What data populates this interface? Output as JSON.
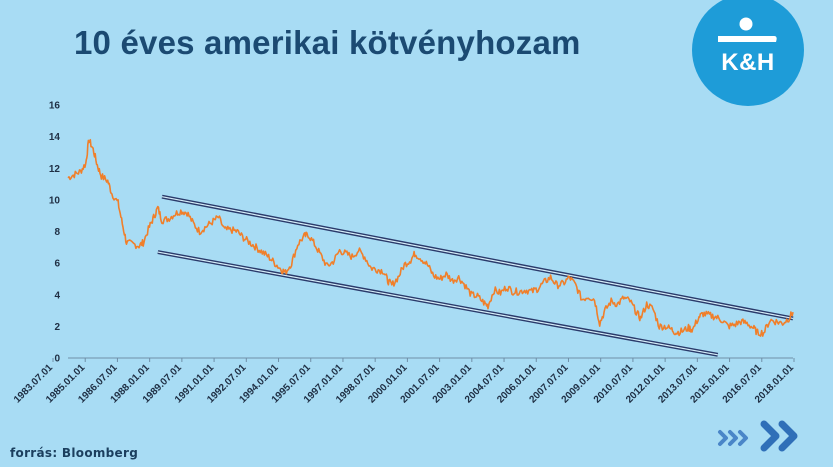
{
  "header": {
    "title": "10 éves amerikai kötvényhozam",
    "logo_text": "K&H",
    "logo_icon": "kh-bank-logo-icon"
  },
  "footer": {
    "source": "forrás: Bloomberg",
    "nav_icon": "double-chevron-right-icon"
  },
  "colors": {
    "background": "#a8dcf4",
    "title": "#1b4a72",
    "series": "#f07f2a",
    "trend_lines": "#2a3a6a",
    "logo": "#1e9cd8"
  },
  "chart_data": {
    "type": "line",
    "title": "10 éves amerikai kötvényhozam",
    "xlabel": "",
    "ylabel": "",
    "ylim": [
      0,
      16
    ],
    "yticks": [
      0,
      2,
      4,
      6,
      8,
      10,
      12,
      14,
      16
    ],
    "xlim": [
      1983.5,
      2018.2
    ],
    "xtick_labels": [
      "1983.07.01",
      "1985.01.01",
      "1986.07.01",
      "1988.01.01",
      "1989.07.01",
      "1991.01.01",
      "1992.07.01",
      "1994.01.01",
      "1995.07.01",
      "1997.01.01",
      "1998.07.01",
      "2000.01.01",
      "2001.07.01",
      "2003.01.01",
      "2004.07.01",
      "2006.01.01",
      "2007.07.01",
      "2009.01.01",
      "2010.07.01",
      "2012.01.01",
      "2013.07.01",
      "2015.01.01",
      "2016.07.01",
      "2018.01.01"
    ],
    "grid": false,
    "legend": "none",
    "series": [
      {
        "x": [
          1983.5,
          1983.8,
          1984.1,
          1984.35,
          1984.5,
          1984.7,
          1984.9,
          1985.1,
          1985.4,
          1985.6,
          1985.9,
          1986.1,
          1986.3,
          1986.6,
          1986.9,
          1987.1,
          1987.4,
          1987.6,
          1987.8,
          1988.0,
          1988.3,
          1988.6,
          1988.9,
          1989.2,
          1989.5,
          1989.8,
          1990.1,
          1990.4,
          1990.7,
          1991.0,
          1991.3,
          1991.6,
          1991.9,
          1992.2,
          1992.5,
          1992.8,
          1993.1,
          1993.4,
          1993.7,
          1993.9,
          1994.2,
          1994.5,
          1994.8,
          1995.0,
          1995.3,
          1995.6,
          1995.9,
          1996.2,
          1996.5,
          1996.8,
          1997.1,
          1997.4,
          1997.7,
          1998.0,
          1998.3,
          1998.6,
          1998.8,
          1999.0,
          1999.3,
          1999.6,
          1999.9,
          2000.1,
          2000.4,
          2000.7,
          2001.0,
          2001.3,
          2001.6,
          2001.9,
          2002.2,
          2002.5,
          2002.8,
          2003.1,
          2003.4,
          2003.6,
          2003.9,
          2004.2,
          2004.5,
          2004.8,
          2005.1,
          2005.4,
          2005.7,
          2006.0,
          2006.3,
          2006.6,
          2006.9,
          2007.2,
          2007.5,
          2007.8,
          2008.1,
          2008.4,
          2008.7,
          2008.95,
          2009.2,
          2009.5,
          2009.8,
          2010.1,
          2010.4,
          2010.7,
          2010.9,
          2011.2,
          2011.5,
          2011.8,
          2012.1,
          2012.4,
          2012.6,
          2012.9,
          2013.2,
          2013.4,
          2013.7,
          2013.9,
          2014.2,
          2014.5,
          2014.8,
          2015.1,
          2015.4,
          2015.7,
          2016.0,
          2016.3,
          2016.5,
          2016.8,
          2017.1,
          2017.4,
          2017.7,
          2018.0,
          2018.2
        ],
        "y": [
          11.4,
          11.6,
          11.8,
          12.3,
          13.8,
          13.2,
          12.2,
          11.5,
          11.2,
          10.4,
          9.8,
          8.5,
          7.3,
          7.2,
          7.1,
          7.3,
          8.3,
          8.9,
          9.5,
          8.7,
          8.8,
          9.1,
          9.3,
          9.2,
          8.5,
          8.0,
          8.3,
          8.6,
          8.9,
          8.1,
          8.1,
          8.0,
          7.6,
          7.3,
          7.0,
          6.7,
          6.4,
          6.0,
          5.6,
          5.4,
          6.0,
          7.2,
          7.7,
          7.8,
          7.2,
          6.5,
          5.8,
          6.1,
          6.8,
          6.6,
          6.4,
          6.8,
          6.4,
          5.7,
          5.6,
          5.5,
          4.9,
          4.6,
          5.1,
          5.9,
          6.2,
          6.6,
          6.3,
          5.9,
          5.2,
          5.0,
          5.3,
          4.9,
          5.1,
          4.6,
          4.0,
          3.9,
          3.5,
          3.3,
          4.3,
          4.1,
          4.5,
          4.2,
          4.2,
          4.3,
          4.2,
          4.4,
          4.8,
          5.1,
          4.6,
          4.7,
          5.1,
          4.6,
          3.7,
          3.9,
          3.7,
          2.2,
          3.0,
          3.6,
          3.4,
          3.8,
          3.6,
          2.9,
          2.5,
          3.4,
          3.1,
          2.0,
          2.0,
          1.8,
          1.6,
          1.7,
          1.9,
          1.8,
          2.6,
          2.8,
          2.7,
          2.6,
          2.4,
          2.0,
          2.1,
          2.3,
          2.2,
          1.9,
          1.6,
          1.6,
          2.4,
          2.3,
          2.2,
          2.5,
          2.9
        ]
      }
    ],
    "trend_channel": [
      {
        "name": "",
        "x": [
          1988.0,
          2018.2
        ],
        "y": [
          10.2,
          2.5
        ]
      },
      {
        "name": "",
        "x": [
          1987.8,
          2014.6
        ],
        "y": [
          6.7,
          0.2
        ]
      }
    ]
  }
}
